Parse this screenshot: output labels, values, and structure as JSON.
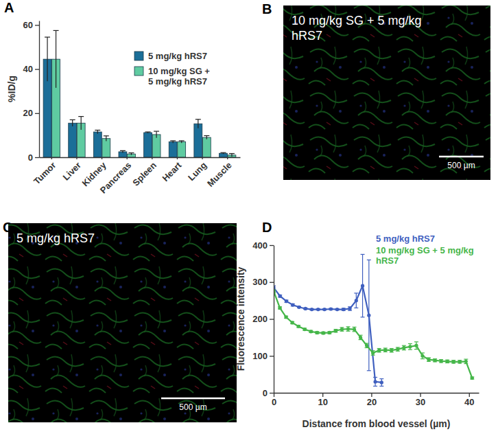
{
  "chart_data": [
    {
      "panel_label": "A",
      "type": "bar",
      "y_label": "%ID/g",
      "categories": [
        "Tumor",
        "Liver",
        "Kidney",
        "Pancreas",
        "Spleen",
        "Heart",
        "Lung",
        "Muscle"
      ],
      "ylim": [
        0,
        62
      ],
      "yticks": [
        0,
        20,
        40,
        60
      ],
      "legend": "top-right",
      "series": [
        {
          "name": "5 mg/kg hRS7",
          "color": "#1b6e98",
          "values": [
            44.5,
            15.5,
            11.5,
            2.5,
            11.2,
            7.0,
            15.2,
            1.8
          ],
          "errors": [
            10.0,
            1.5,
            0.8,
            0.5,
            0.3,
            0.5,
            2.0,
            0.3
          ]
        },
        {
          "name": "10 mg/kg SG + 5 mg/kg hRS7",
          "color": "#5fcba1",
          "values": [
            44.5,
            15.5,
            8.5,
            1.5,
            10.3,
            7.0,
            9.0,
            1.0
          ],
          "errors": [
            13.0,
            3.0,
            1.2,
            0.5,
            1.5,
            0.5,
            0.8,
            0.7
          ]
        }
      ]
    },
    {
      "panel_label": "B",
      "type": "image",
      "title": "10 mg/kg SG + 5 mg/kg hRS7",
      "scale_bar": "500 µm"
    },
    {
      "panel_label": "C",
      "type": "image",
      "title": "5 mg/kg hRS7",
      "scale_bar": "500 µm"
    },
    {
      "panel_label": "D",
      "type": "line",
      "x_label": "Distance from blood vessel (µm)",
      "y_label": "Fluorescence intensity",
      "xlim": [
        0,
        42
      ],
      "xticks": [
        0,
        10,
        20,
        30,
        40
      ],
      "ylim": [
        0,
        400
      ],
      "yticks": [
        0,
        100,
        200,
        300,
        400
      ],
      "legend": "top-right",
      "marker": "circle",
      "series": [
        {
          "name": "5 mg/kg hRS7",
          "color": "#3f5fbf",
          "x": [
            0,
            1.3,
            2.6,
            3.9,
            5.2,
            6.5,
            7.8,
            9.1,
            10.4,
            11.7,
            13,
            14.3,
            15.6,
            16.9,
            18.2,
            19.5,
            20.8,
            22.1
          ],
          "values": [
            285,
            262,
            248,
            238,
            232,
            228,
            226,
            226,
            226,
            227,
            226,
            226,
            228,
            250,
            290,
            210,
            30,
            28
          ],
          "errors": [
            5,
            3,
            3,
            3,
            2,
            2,
            2,
            2,
            2,
            2,
            2,
            3,
            5,
            20,
            85,
            150,
            12,
            10
          ]
        },
        {
          "name": "10 mg/kg SG + 5 mg/kg hRS7",
          "color": "#45b649",
          "x": [
            0,
            1.27,
            2.54,
            3.81,
            5.08,
            6.35,
            7.62,
            8.89,
            10.16,
            11.43,
            12.7,
            13.97,
            15.24,
            16.51,
            17.78,
            19.05,
            20.32,
            21.59,
            22.86,
            24.13,
            25.4,
            26.67,
            27.94,
            29.21,
            30.48,
            31.75,
            33.02,
            34.29,
            35.56,
            36.83,
            38.1,
            39.37,
            40.64
          ],
          "values": [
            275,
            230,
            205,
            190,
            180,
            172,
            166,
            163,
            162,
            163,
            168,
            172,
            173,
            172,
            150,
            128,
            108,
            115,
            116,
            115,
            118,
            122,
            125,
            128,
            100,
            90,
            88,
            86,
            85,
            84,
            84,
            85,
            40
          ],
          "errors": [
            4,
            3,
            3,
            3,
            3,
            3,
            3,
            3,
            3,
            3,
            4,
            5,
            6,
            6,
            6,
            6,
            6,
            5,
            5,
            5,
            5,
            6,
            8,
            10,
            8,
            5,
            4,
            4,
            4,
            4,
            4,
            6,
            3
          ]
        }
      ]
    }
  ]
}
